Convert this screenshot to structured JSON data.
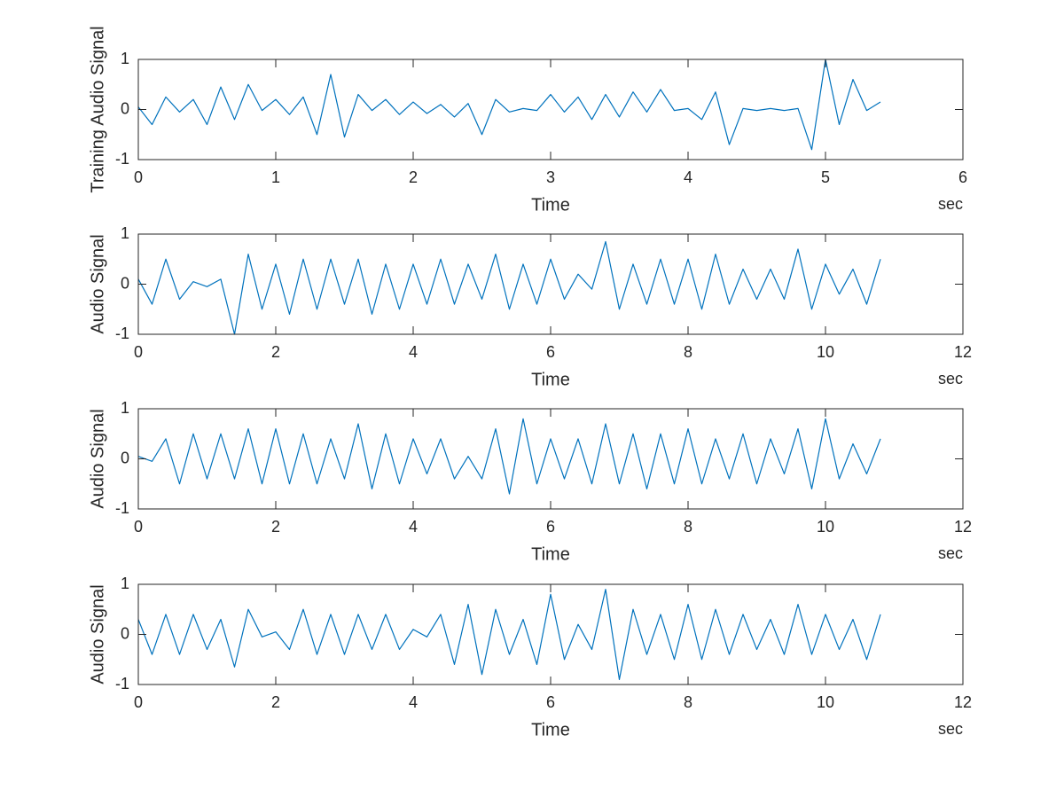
{
  "chart_data": [
    {
      "type": "line",
      "ylabel": "Training Audio Signal",
      "xlabel": "Time",
      "x_unit": "sec",
      "color": "#0072bd",
      "xlim": [
        0,
        6
      ],
      "xticks": [
        0,
        1,
        2,
        3,
        4,
        5,
        6
      ],
      "ylim": [
        -1,
        1
      ],
      "yticks": [
        -1,
        0,
        1
      ],
      "x": [
        0,
        0.1,
        0.2,
        0.3,
        0.4,
        0.5,
        0.6,
        0.7,
        0.8,
        0.9,
        1,
        1.1,
        1.2,
        1.3,
        1.4,
        1.5,
        1.6,
        1.7,
        1.8,
        1.9,
        2,
        2.1,
        2.2,
        2.3,
        2.4,
        2.5,
        2.6,
        2.7,
        2.8,
        2.9,
        3,
        3.1,
        3.2,
        3.3,
        3.4,
        3.5,
        3.6,
        3.7,
        3.8,
        3.9,
        4,
        4.1,
        4.2,
        4.3,
        4.4,
        4.5,
        4.6,
        4.7,
        4.8,
        4.9,
        5,
        5.1,
        5.2,
        5.3,
        5.4
      ],
      "values": [
        0.05,
        -0.3,
        0.25,
        -0.05,
        0.2,
        -0.3,
        0.45,
        -0.2,
        0.5,
        -0.02,
        0.2,
        -0.1,
        0.25,
        -0.5,
        0.7,
        -0.55,
        0.3,
        -0.02,
        0.2,
        -0.1,
        0.15,
        -0.08,
        0.1,
        -0.15,
        0.12,
        -0.5,
        0.2,
        -0.05,
        0.02,
        -0.02,
        0.3,
        -0.05,
        0.25,
        -0.2,
        0.3,
        -0.15,
        0.35,
        -0.05,
        0.4,
        -0.02,
        0.02,
        -0.2,
        0.35,
        -0.7,
        0.02,
        -0.02,
        0.02,
        -0.02,
        0.02,
        -0.8,
        1,
        -0.3,
        0.6,
        -0.02,
        0.15
      ]
    },
    {
      "type": "line",
      "ylabel": "Audio Signal",
      "xlabel": "Time",
      "x_unit": "sec",
      "color": "#0072bd",
      "xlim": [
        0,
        12
      ],
      "xticks": [
        0,
        2,
        4,
        6,
        8,
        10,
        12
      ],
      "ylim": [
        -1,
        1
      ],
      "yticks": [
        -1,
        0,
        1
      ],
      "x": [
        0,
        0.2,
        0.4,
        0.6,
        0.8,
        1,
        1.2,
        1.4,
        1.6,
        1.8,
        2,
        2.2,
        2.4,
        2.6,
        2.8,
        3,
        3.2,
        3.4,
        3.6,
        3.8,
        4,
        4.2,
        4.4,
        4.6,
        4.8,
        5,
        5.2,
        5.4,
        5.6,
        5.8,
        6,
        6.2,
        6.4,
        6.6,
        6.8,
        7,
        7.2,
        7.4,
        7.6,
        7.8,
        8,
        8.2,
        8.4,
        8.6,
        8.8,
        9,
        9.2,
        9.4,
        9.6,
        9.8,
        10,
        10.2,
        10.4,
        10.6,
        10.8
      ],
      "values": [
        0.1,
        -0.4,
        0.5,
        -0.3,
        0.05,
        -0.05,
        0.1,
        -1,
        0.6,
        -0.5,
        0.4,
        -0.6,
        0.5,
        -0.5,
        0.5,
        -0.4,
        0.5,
        -0.6,
        0.4,
        -0.5,
        0.4,
        -0.4,
        0.5,
        -0.4,
        0.4,
        -0.3,
        0.6,
        -0.5,
        0.4,
        -0.4,
        0.5,
        -0.3,
        0.2,
        -0.1,
        0.85,
        -0.5,
        0.4,
        -0.4,
        0.5,
        -0.4,
        0.5,
        -0.5,
        0.6,
        -0.4,
        0.3,
        -0.3,
        0.3,
        -0.3,
        0.7,
        -0.5,
        0.4,
        -0.2,
        0.3,
        -0.4,
        0.5
      ]
    },
    {
      "type": "line",
      "ylabel": "Audio Signal",
      "xlabel": "Time",
      "x_unit": "sec",
      "color": "#0072bd",
      "xlim": [
        0,
        12
      ],
      "xticks": [
        0,
        2,
        4,
        6,
        8,
        10,
        12
      ],
      "ylim": [
        -1,
        1
      ],
      "yticks": [
        -1,
        0,
        1
      ],
      "x": [
        0,
        0.2,
        0.4,
        0.6,
        0.8,
        1,
        1.2,
        1.4,
        1.6,
        1.8,
        2,
        2.2,
        2.4,
        2.6,
        2.8,
        3,
        3.2,
        3.4,
        3.6,
        3.8,
        4,
        4.2,
        4.4,
        4.6,
        4.8,
        5,
        5.2,
        5.4,
        5.6,
        5.8,
        6,
        6.2,
        6.4,
        6.6,
        6.8,
        7,
        7.2,
        7.4,
        7.6,
        7.8,
        8,
        8.2,
        8.4,
        8.6,
        8.8,
        9,
        9.2,
        9.4,
        9.6,
        9.8,
        10,
        10.2,
        10.4,
        10.6,
        10.8
      ],
      "values": [
        0.05,
        -0.05,
        0.4,
        -0.5,
        0.5,
        -0.4,
        0.5,
        -0.4,
        0.6,
        -0.5,
        0.6,
        -0.5,
        0.5,
        -0.5,
        0.4,
        -0.4,
        0.7,
        -0.6,
        0.5,
        -0.5,
        0.4,
        -0.3,
        0.4,
        -0.4,
        0.05,
        -0.4,
        0.6,
        -0.7,
        0.8,
        -0.5,
        0.4,
        -0.4,
        0.4,
        -0.5,
        0.7,
        -0.5,
        0.5,
        -0.6,
        0.5,
        -0.5,
        0.6,
        -0.5,
        0.4,
        -0.4,
        0.5,
        -0.5,
        0.4,
        -0.3,
        0.6,
        -0.6,
        0.8,
        -0.4,
        0.3,
        -0.3,
        0.4
      ]
    },
    {
      "type": "line",
      "ylabel": "Audio Signal",
      "xlabel": "Time",
      "x_unit": "sec",
      "color": "#0072bd",
      "xlim": [
        0,
        12
      ],
      "xticks": [
        0,
        2,
        4,
        6,
        8,
        10,
        12
      ],
      "ylim": [
        -1,
        1
      ],
      "yticks": [
        -1,
        0,
        1
      ],
      "x": [
        0,
        0.2,
        0.4,
        0.6,
        0.8,
        1,
        1.2,
        1.4,
        1.6,
        1.8,
        2,
        2.2,
        2.4,
        2.6,
        2.8,
        3,
        3.2,
        3.4,
        3.6,
        3.8,
        4,
        4.2,
        4.4,
        4.6,
        4.8,
        5,
        5.2,
        5.4,
        5.6,
        5.8,
        6,
        6.2,
        6.4,
        6.6,
        6.8,
        7,
        7.2,
        7.4,
        7.6,
        7.8,
        8,
        8.2,
        8.4,
        8.6,
        8.8,
        9,
        9.2,
        9.4,
        9.6,
        9.8,
        10,
        10.2,
        10.4,
        10.6,
        10.8
      ],
      "values": [
        0.3,
        -0.4,
        0.4,
        -0.4,
        0.4,
        -0.3,
        0.3,
        -0.65,
        0.5,
        -0.05,
        0.05,
        -0.3,
        0.5,
        -0.4,
        0.4,
        -0.4,
        0.4,
        -0.3,
        0.4,
        -0.3,
        0.1,
        -0.05,
        0.4,
        -0.6,
        0.6,
        -0.8,
        0.5,
        -0.4,
        0.3,
        -0.6,
        0.8,
        -0.5,
        0.2,
        -0.3,
        0.9,
        -0.9,
        0.5,
        -0.4,
        0.4,
        -0.5,
        0.6,
        -0.5,
        0.5,
        -0.4,
        0.4,
        -0.3,
        0.3,
        -0.4,
        0.6,
        -0.4,
        0.4,
        -0.3,
        0.3,
        -0.5,
        0.4
      ]
    }
  ]
}
